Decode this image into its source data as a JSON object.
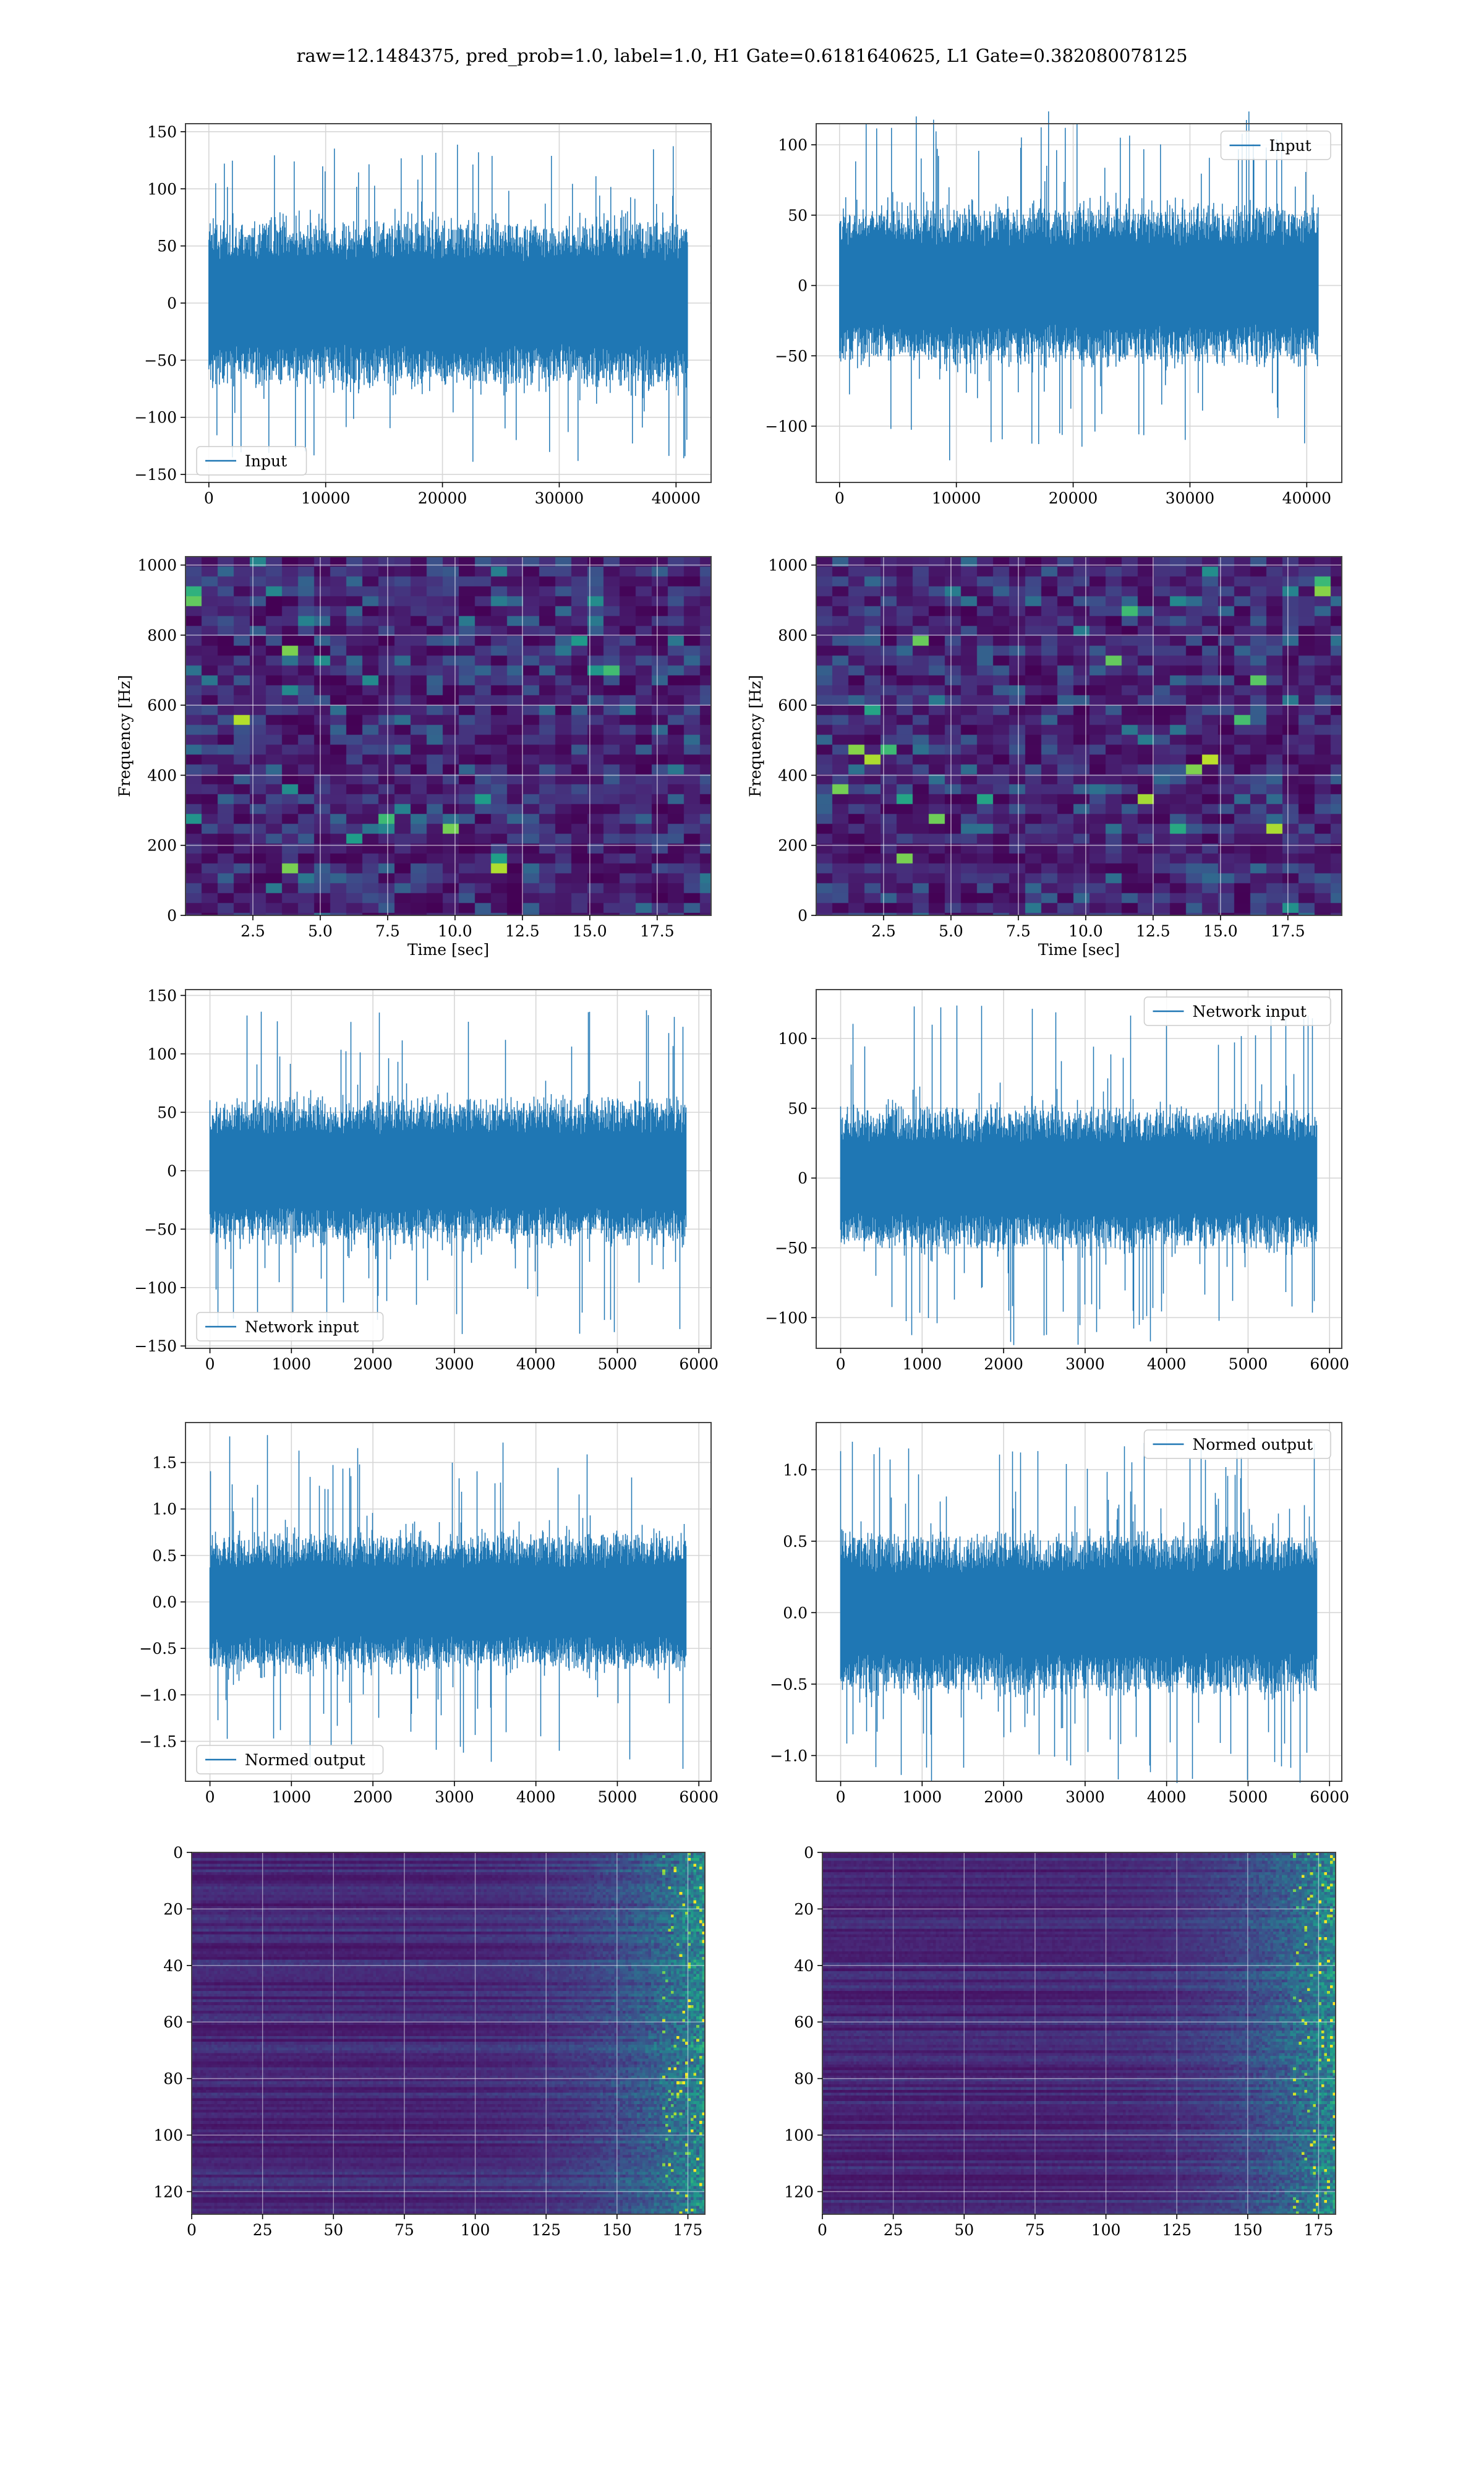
{
  "figure": {
    "title": "raw=12.1484375, pred_prob=1.0, label=1.0, H1 Gate=0.6181640625, L1 Gate=0.382080078125"
  },
  "colors": {
    "series": "#1f77b4",
    "grid": "#d6d6d6",
    "frame": "#444444"
  },
  "chart_data": [
    {
      "id": "input-h",
      "type": "line",
      "grid": true,
      "legend_placement": "lower-left",
      "series": [
        {
          "name": "Input",
          "color": "#1f77b4",
          "n": 40960,
          "envelope": {
            "typical_abs": 65,
            "peak_abs": 140
          }
        }
      ],
      "xlim": [
        -2000,
        43000
      ],
      "ylim": [
        -157,
        157
      ],
      "xticks": [
        0,
        10000,
        20000,
        30000,
        40000
      ],
      "xtick_labels": [
        "0",
        "10000",
        "20000",
        "30000",
        "40000"
      ],
      "yticks": [
        150,
        100,
        50,
        0,
        -50,
        -100,
        -150
      ],
      "ytick_labels": [
        "150",
        "100",
        "50",
        "0",
        "−50",
        "−100",
        "−150"
      ],
      "xlabel": "",
      "ylabel": ""
    },
    {
      "id": "input-l",
      "type": "line",
      "grid": true,
      "legend_placement": "upper-right",
      "series": [
        {
          "name": "Input",
          "color": "#1f77b4",
          "n": 40960,
          "envelope": {
            "typical_abs": 50,
            "peak_abs": 125
          }
        }
      ],
      "xlim": [
        -2000,
        43000
      ],
      "ylim": [
        -140,
        115
      ],
      "xticks": [
        0,
        10000,
        20000,
        30000,
        40000
      ],
      "xtick_labels": [
        "0",
        "10000",
        "20000",
        "30000",
        "40000"
      ],
      "yticks": [
        100,
        50,
        0,
        -50,
        -100
      ],
      "ytick_labels": [
        "100",
        "50",
        "0",
        "−50",
        "−100"
      ],
      "xlabel": "",
      "ylabel": ""
    },
    {
      "id": "spec-h",
      "type": "heatmap",
      "grid": true,
      "xlim": [
        0,
        19.5
      ],
      "ylim": [
        0,
        1024
      ],
      "xticks": [
        2.5,
        5.0,
        7.5,
        10.0,
        12.5,
        15.0,
        17.5
      ],
      "xtick_labels": [
        "2.5",
        "5.0",
        "7.5",
        "10.0",
        "12.5",
        "15.0",
        "17.5"
      ],
      "yticks": [
        0,
        200,
        400,
        600,
        800,
        1000
      ],
      "ytick_labels": [
        "0",
        "200",
        "400",
        "600",
        "800",
        "1000"
      ],
      "xlabel": "Time [sec]",
      "ylabel": "Frequency [Hz]",
      "colormap": "viridis"
    },
    {
      "id": "spec-l",
      "type": "heatmap",
      "grid": true,
      "xlim": [
        0,
        19.5
      ],
      "ylim": [
        0,
        1024
      ],
      "xticks": [
        2.5,
        5.0,
        7.5,
        10.0,
        12.5,
        15.0,
        17.5
      ],
      "xtick_labels": [
        "2.5",
        "5.0",
        "7.5",
        "10.0",
        "12.5",
        "15.0",
        "17.5"
      ],
      "yticks": [
        0,
        200,
        400,
        600,
        800,
        1000
      ],
      "ytick_labels": [
        "0",
        "200",
        "400",
        "600",
        "800",
        "1000"
      ],
      "xlabel": "Time [sec]",
      "ylabel": "Frequency [Hz]",
      "colormap": "viridis"
    },
    {
      "id": "net-h",
      "type": "line",
      "grid": true,
      "legend_placement": "lower-left",
      "series": [
        {
          "name": "Network input",
          "color": "#1f77b4",
          "n": 5840,
          "envelope": {
            "typical_abs": 55,
            "peak_abs": 140
          }
        }
      ],
      "xlim": [
        -300,
        6150
      ],
      "ylim": [
        -152,
        155
      ],
      "xticks": [
        0,
        1000,
        2000,
        3000,
        4000,
        5000,
        6000
      ],
      "xtick_labels": [
        "0",
        "1000",
        "2000",
        "3000",
        "4000",
        "5000",
        "6000"
      ],
      "yticks": [
        150,
        100,
        50,
        0,
        -50,
        -100,
        -150
      ],
      "ytick_labels": [
        "150",
        "100",
        "50",
        "0",
        "−50",
        "−100",
        "−150"
      ],
      "xlabel": "",
      "ylabel": ""
    },
    {
      "id": "net-l",
      "type": "line",
      "grid": true,
      "legend_placement": "upper-right",
      "series": [
        {
          "name": "Network input",
          "color": "#1f77b4",
          "n": 5840,
          "envelope": {
            "typical_abs": 45,
            "peak_abs": 125
          }
        }
      ],
      "xlim": [
        -300,
        6150
      ],
      "ylim": [
        -122,
        135
      ],
      "xticks": [
        0,
        1000,
        2000,
        3000,
        4000,
        5000,
        6000
      ],
      "xtick_labels": [
        "0",
        "1000",
        "2000",
        "3000",
        "4000",
        "5000",
        "6000"
      ],
      "yticks": [
        100,
        50,
        0,
        -50,
        -100
      ],
      "ytick_labels": [
        "100",
        "50",
        "0",
        "−50",
        "−100"
      ],
      "xlabel": "",
      "ylabel": ""
    },
    {
      "id": "norm-h",
      "type": "line",
      "grid": true,
      "legend_placement": "lower-left",
      "series": [
        {
          "name": "Normed output",
          "color": "#1f77b4",
          "n": 5840,
          "envelope": {
            "typical_abs": 0.65,
            "peak_abs": 1.8
          }
        }
      ],
      "xlim": [
        -300,
        6150
      ],
      "ylim": [
        -1.93,
        1.93
      ],
      "xticks": [
        0,
        1000,
        2000,
        3000,
        4000,
        5000,
        6000
      ],
      "xtick_labels": [
        "0",
        "1000",
        "2000",
        "3000",
        "4000",
        "5000",
        "6000"
      ],
      "yticks": [
        1.5,
        1.0,
        0.5,
        0.0,
        -0.5,
        -1.0,
        -1.5
      ],
      "ytick_labels": [
        "1.5",
        "1.0",
        "0.5",
        "0.0",
        "−0.5",
        "−1.0",
        "−1.5"
      ],
      "xlabel": "",
      "ylabel": ""
    },
    {
      "id": "norm-l",
      "type": "line",
      "grid": true,
      "legend_placement": "upper-right",
      "series": [
        {
          "name": "Normed output",
          "color": "#1f77b4",
          "n": 5840,
          "envelope": {
            "typical_abs": 0.5,
            "peak_abs": 1.2
          }
        }
      ],
      "xlim": [
        -300,
        6150
      ],
      "ylim": [
        -1.18,
        1.33
      ],
      "xticks": [
        0,
        1000,
        2000,
        3000,
        4000,
        5000,
        6000
      ],
      "xtick_labels": [
        "0",
        "1000",
        "2000",
        "3000",
        "4000",
        "5000",
        "6000"
      ],
      "yticks": [
        1.0,
        0.5,
        0.0,
        -0.5,
        -1.0
      ],
      "ytick_labels": [
        "1.0",
        "0.5",
        "0.0",
        "−0.5",
        "−1.0"
      ],
      "xlabel": "",
      "ylabel": ""
    },
    {
      "id": "feat-h",
      "type": "heatmap",
      "grid": true,
      "xlim": [
        0,
        181
      ],
      "ylim": [
        128,
        0
      ],
      "xticks": [
        0,
        25,
        50,
        75,
        100,
        125,
        150,
        175
      ],
      "xtick_labels": [
        "0",
        "25",
        "50",
        "75",
        "100",
        "125",
        "150",
        "175"
      ],
      "yticks": [
        0,
        20,
        40,
        60,
        80,
        100,
        120
      ],
      "ytick_labels": [
        "0",
        "20",
        "40",
        "60",
        "80",
        "100",
        "120"
      ],
      "xlabel": "",
      "ylabel": "",
      "colormap": "viridis"
    },
    {
      "id": "feat-l",
      "type": "heatmap",
      "grid": true,
      "xlim": [
        0,
        181
      ],
      "ylim": [
        128,
        0
      ],
      "xticks": [
        0,
        25,
        50,
        75,
        100,
        125,
        150,
        175
      ],
      "xtick_labels": [
        "0",
        "25",
        "50",
        "75",
        "100",
        "125",
        "150",
        "175"
      ],
      "yticks": [
        0,
        20,
        40,
        60,
        80,
        100,
        120
      ],
      "ytick_labels": [
        "0",
        "20",
        "40",
        "60",
        "80",
        "100",
        "120"
      ],
      "xlabel": "",
      "ylabel": "",
      "colormap": "viridis"
    }
  ]
}
